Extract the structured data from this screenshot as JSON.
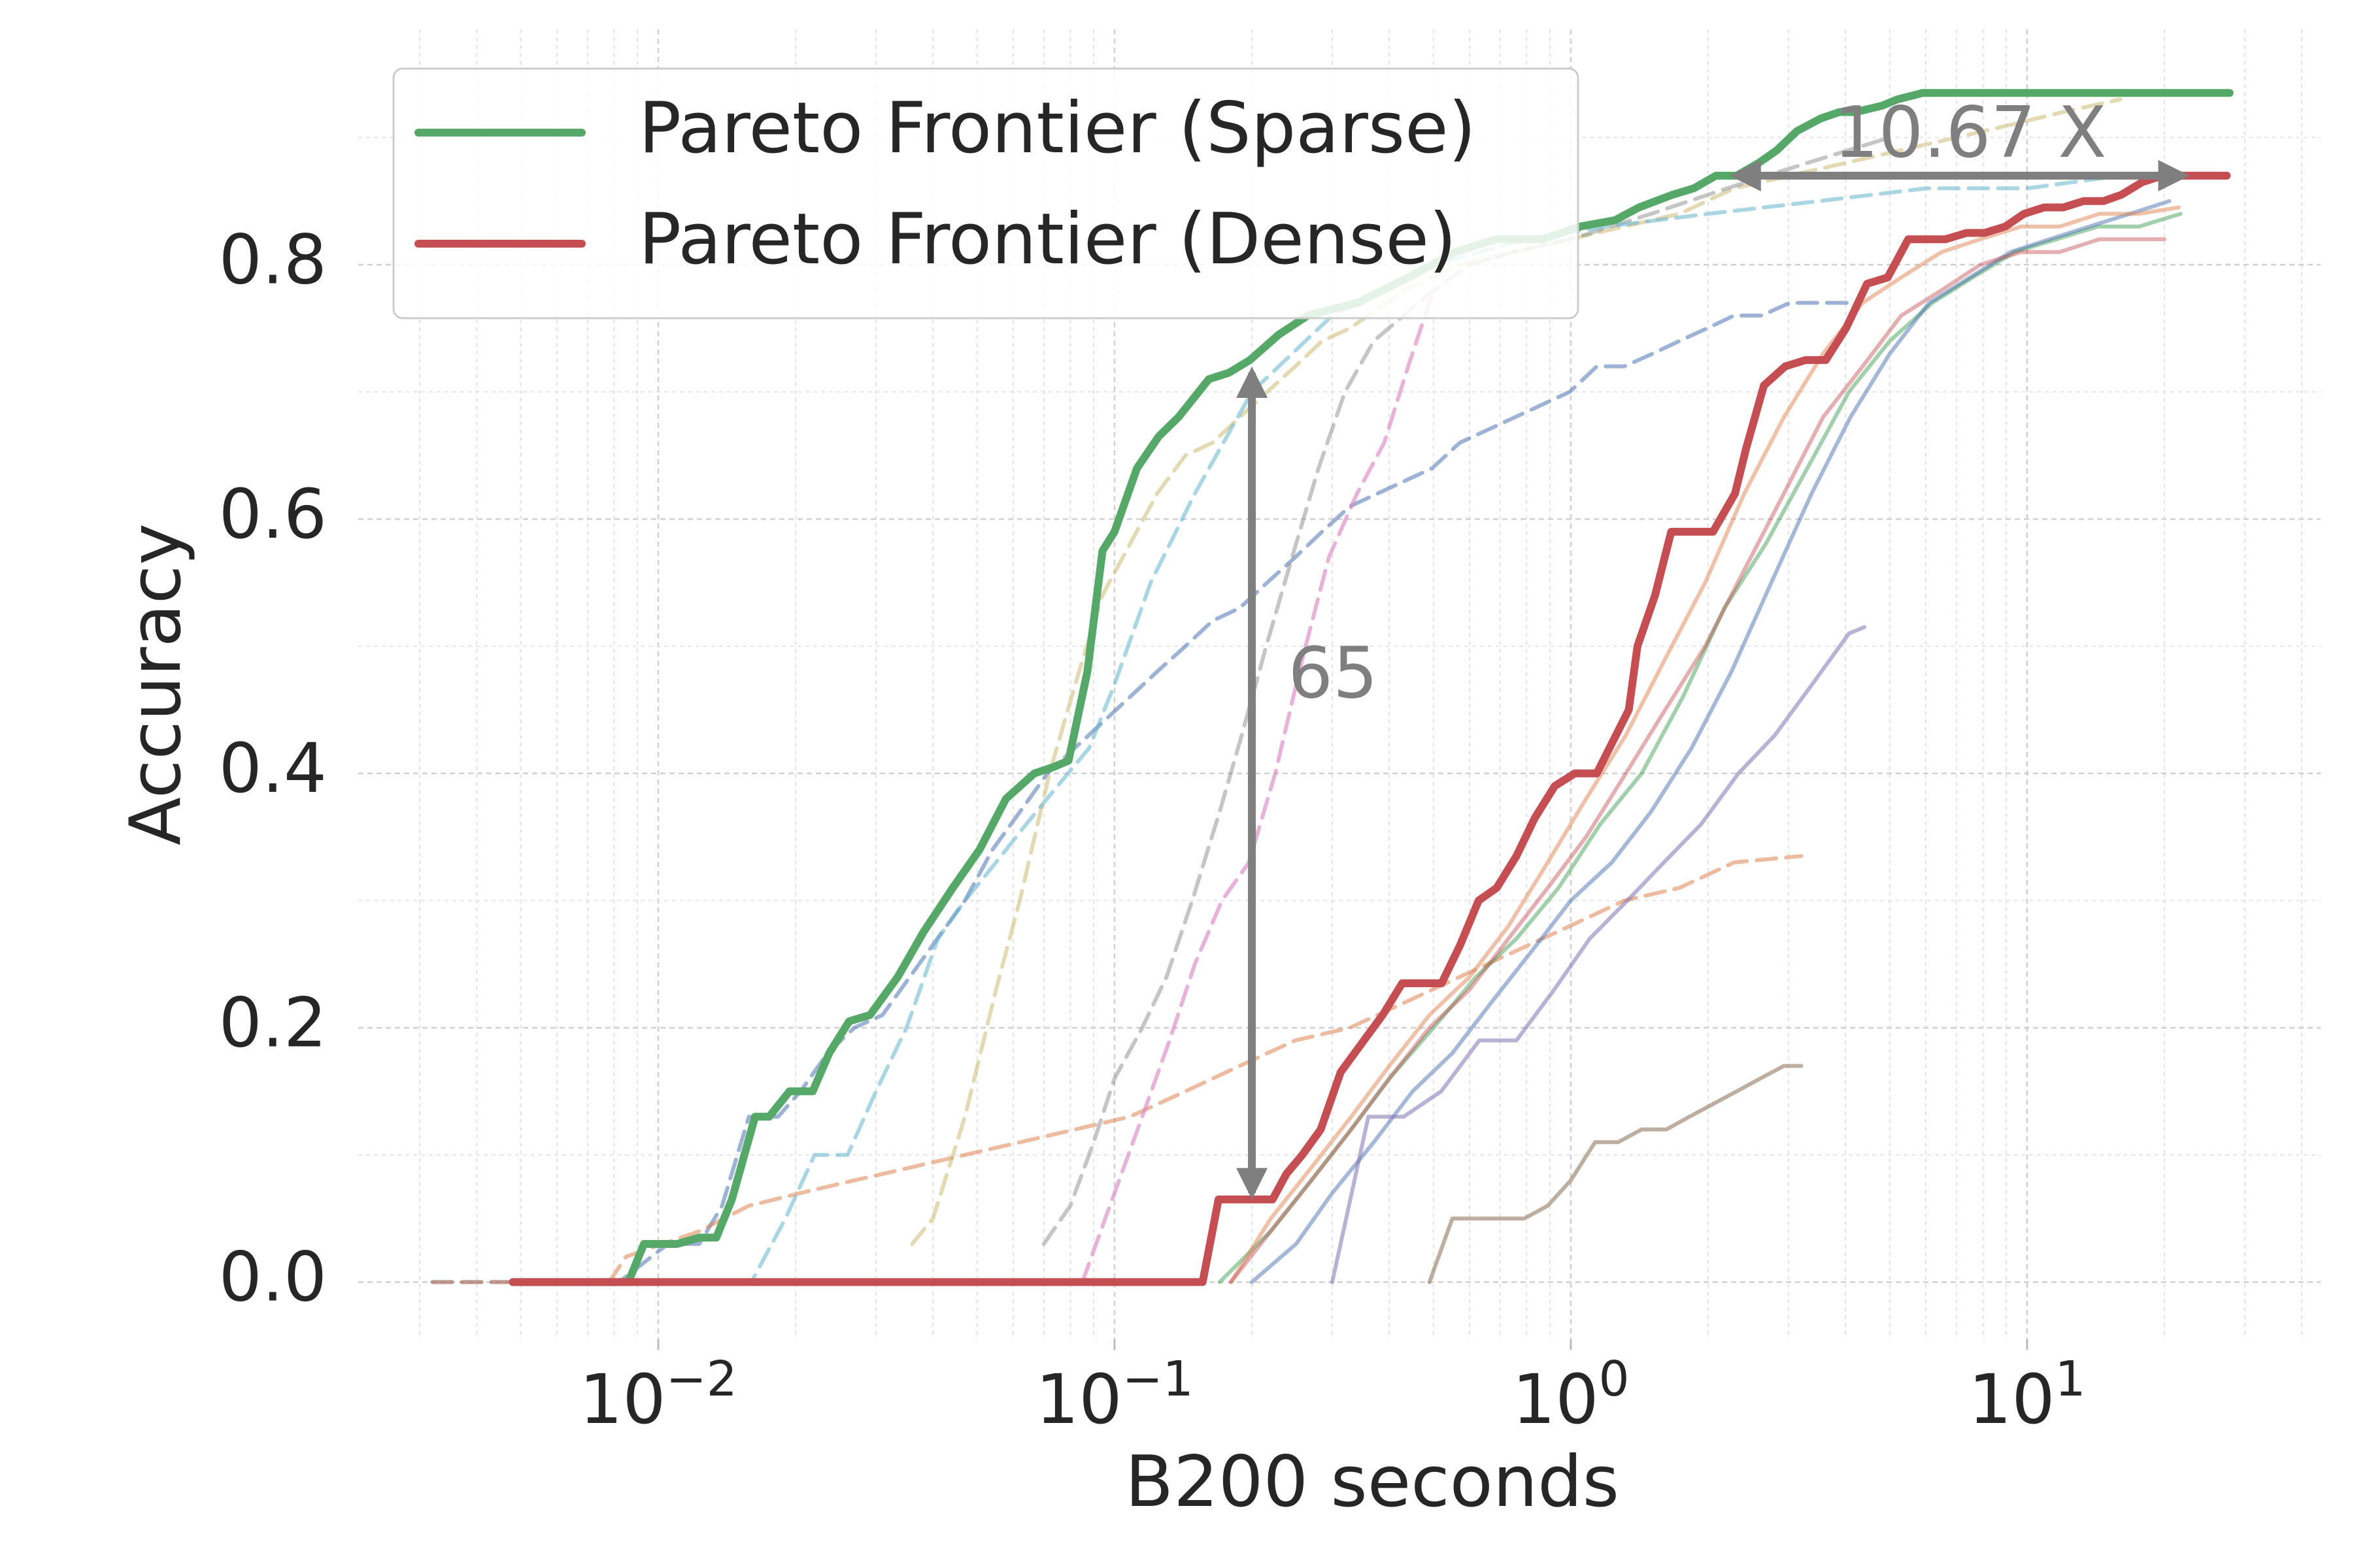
{
  "chart_data": {
    "type": "line",
    "title": "",
    "xlabel": "B200 seconds",
    "ylabel": "Accuracy",
    "xscale": "log",
    "xlim": [
      0.0022,
      44
    ],
    "ylim": [
      -0.045,
      0.985
    ],
    "grid": true,
    "legend_placement": "top-left",
    "x_tick_labels": [
      {
        "value": 0.01,
        "base": "10",
        "exp": "−2"
      },
      {
        "value": 0.1,
        "base": "10",
        "exp": "−1"
      },
      {
        "value": 1,
        "base": "10",
        "exp": "0"
      },
      {
        "value": 10,
        "base": "10",
        "exp": "1"
      }
    ],
    "y_ticks": [
      0.0,
      0.2,
      0.4,
      0.6,
      0.8
    ],
    "y_tick_labels": [
      "0.0",
      "0.2",
      "0.4",
      "0.6",
      "0.8"
    ],
    "legend": [
      {
        "name": "Pareto Frontier (Sparse)",
        "color": "#55a868"
      },
      {
        "name": "Pareto Frontier (Dense)",
        "color": "#c44e52"
      }
    ],
    "annotations": [
      {
        "text": "65",
        "x": 0.24,
        "y": 0.475
      },
      {
        "text": "10.67 X",
        "x": 7.5,
        "y": 0.9
      }
    ],
    "arrows": [
      {
        "from": [
          0.2,
          0.07
        ],
        "to": [
          0.2,
          0.715
        ]
      },
      {
        "from": [
          2.3,
          0.87
        ],
        "to": [
          22,
          0.87
        ]
      }
    ],
    "series": [
      {
        "name": "Pareto Frontier (Sparse)",
        "color": "#55a868",
        "width": 12,
        "opacity": 1,
        "dash": "",
        "x": [
          0.0048,
          0.0086,
          0.0093,
          0.011,
          0.0123,
          0.0134,
          0.0145,
          0.0163,
          0.0175,
          0.0194,
          0.0218,
          0.0237,
          0.0262,
          0.0291,
          0.0335,
          0.0381,
          0.0442,
          0.0506,
          0.0578,
          0.0667,
          0.0735,
          0.0793,
          0.0872,
          0.0941,
          0.1,
          0.112,
          0.125,
          0.138,
          0.161,
          0.178,
          0.198,
          0.229,
          0.265,
          0.341,
          0.441,
          0.558,
          0.687,
          0.866,
          1.05,
          1.25,
          1.41,
          1.67,
          1.86,
          2.08,
          2.31,
          2.58,
          2.83,
          3.13,
          3.53,
          3.88,
          4.21,
          4.81,
          5.2,
          5.9,
          6.3,
          27.8
        ],
        "y": [
          0.0,
          0.0,
          0.03,
          0.03,
          0.035,
          0.035,
          0.065,
          0.13,
          0.13,
          0.15,
          0.15,
          0.18,
          0.205,
          0.21,
          0.24,
          0.275,
          0.31,
          0.34,
          0.38,
          0.4,
          0.405,
          0.41,
          0.48,
          0.575,
          0.59,
          0.64,
          0.665,
          0.68,
          0.71,
          0.715,
          0.725,
          0.745,
          0.76,
          0.77,
          0.79,
          0.81,
          0.82,
          0.82,
          0.83,
          0.835,
          0.845,
          0.855,
          0.86,
          0.87,
          0.87,
          0.88,
          0.89,
          0.905,
          0.915,
          0.92,
          0.92,
          0.925,
          0.93,
          0.935,
          0.935,
          0.935
        ]
      },
      {
        "name": "Pareto Frontier (Dense)",
        "color": "#c44e52",
        "width": 12,
        "opacity": 1,
        "dash": "",
        "x": [
          0.0048,
          0.156,
          0.169,
          0.192,
          0.222,
          0.238,
          0.258,
          0.283,
          0.313,
          0.352,
          0.387,
          0.427,
          0.474,
          0.521,
          0.572,
          0.628,
          0.688,
          0.76,
          0.834,
          0.922,
          1.02,
          1.14,
          1.34,
          1.4,
          1.53,
          1.66,
          1.78,
          2.05,
          2.29,
          2.42,
          2.65,
          2.95,
          3.27,
          3.62,
          4.01,
          4.46,
          4.95,
          5.49,
          6.04,
          6.62,
          7.37,
          8.07,
          8.96,
          9.84,
          10.9,
          12.0,
          13.3,
          14.7,
          16.1,
          17.9,
          19.8,
          21.9,
          24.2,
          27.4
        ],
        "y": [
          0.0,
          0.0,
          0.065,
          0.065,
          0.065,
          0.085,
          0.1,
          0.12,
          0.165,
          0.19,
          0.21,
          0.235,
          0.235,
          0.235,
          0.265,
          0.3,
          0.31,
          0.335,
          0.365,
          0.39,
          0.4,
          0.4,
          0.45,
          0.5,
          0.54,
          0.59,
          0.59,
          0.59,
          0.62,
          0.655,
          0.705,
          0.72,
          0.725,
          0.725,
          0.75,
          0.785,
          0.79,
          0.82,
          0.82,
          0.82,
          0.825,
          0.825,
          0.83,
          0.84,
          0.845,
          0.845,
          0.85,
          0.85,
          0.855,
          0.865,
          0.87,
          0.87,
          0.87,
          0.87
        ]
      },
      {
        "color": "#4c72b0",
        "width": 6,
        "opacity": 0.55,
        "dash": "30,15",
        "x": [
          0.0032,
          0.0082,
          0.0105,
          0.0123,
          0.0138,
          0.0158,
          0.0183,
          0.0205,
          0.0235,
          0.0269,
          0.031,
          0.0356,
          0.0409,
          0.047,
          0.054,
          0.0621,
          0.0713,
          0.0819,
          0.0941,
          0.108,
          0.124,
          0.143,
          0.164,
          0.188,
          0.216,
          0.249,
          0.285,
          0.328,
          0.377,
          0.433,
          0.497,
          0.571,
          0.656,
          0.754,
          0.866,
          0.995,
          1.14,
          1.31,
          1.51,
          1.73,
          1.99,
          2.28,
          2.62,
          3.02,
          3.46,
          3.98,
          4.3
        ],
        "y": [
          0.0,
          0.0,
          0.03,
          0.03,
          0.06,
          0.13,
          0.13,
          0.15,
          0.18,
          0.2,
          0.21,
          0.24,
          0.27,
          0.3,
          0.34,
          0.37,
          0.4,
          0.42,
          0.44,
          0.46,
          0.48,
          0.5,
          0.52,
          0.53,
          0.55,
          0.57,
          0.59,
          0.61,
          0.62,
          0.63,
          0.64,
          0.66,
          0.67,
          0.68,
          0.69,
          0.7,
          0.72,
          0.72,
          0.73,
          0.74,
          0.75,
          0.76,
          0.76,
          0.77,
          0.77,
          0.77,
          0.77
        ]
      },
      {
        "color": "#dd8452",
        "width": 6,
        "opacity": 0.55,
        "dash": "30,15",
        "x": [
          0.0032,
          0.0078,
          0.0085,
          0.0123,
          0.0158,
          0.0205,
          0.0269,
          0.0356,
          0.047,
          0.0621,
          0.0819,
          0.108,
          0.143,
          0.188,
          0.249,
          0.328,
          0.433,
          0.571,
          0.754,
          0.995,
          1.31,
          1.73,
          2.28,
          3.2
        ],
        "y": [
          0.0,
          0.0,
          0.02,
          0.04,
          0.06,
          0.07,
          0.08,
          0.09,
          0.1,
          0.11,
          0.12,
          0.13,
          0.15,
          0.17,
          0.19,
          0.2,
          0.22,
          0.24,
          0.26,
          0.28,
          0.3,
          0.31,
          0.33,
          0.335
        ]
      },
      {
        "color": "#ccb974",
        "width": 6,
        "opacity": 0.55,
        "dash": "30,15",
        "x": [
          0.036,
          0.04,
          0.047,
          0.055,
          0.062,
          0.072,
          0.082,
          0.094,
          0.108,
          0.124,
          0.143,
          0.164,
          0.188,
          0.216,
          0.249,
          0.285,
          0.328,
          0.433,
          0.571,
          0.754,
          0.995,
          1.31,
          1.73,
          2.28,
          3.02,
          4.0,
          5.3,
          7.0,
          9.2,
          12.0,
          16.0
        ],
        "y": [
          0.03,
          0.05,
          0.13,
          0.23,
          0.3,
          0.4,
          0.47,
          0.54,
          0.58,
          0.62,
          0.65,
          0.66,
          0.68,
          0.7,
          0.72,
          0.74,
          0.75,
          0.78,
          0.8,
          0.81,
          0.82,
          0.83,
          0.84,
          0.86,
          0.87,
          0.88,
          0.89,
          0.9,
          0.91,
          0.92,
          0.93
        ]
      },
      {
        "color": "#8c8c8c",
        "width": 6,
        "opacity": 0.5,
        "dash": "30,15",
        "x": [
          0.07,
          0.08,
          0.09,
          0.1,
          0.115,
          0.13,
          0.148,
          0.17,
          0.19,
          0.215,
          0.245,
          0.28,
          0.32,
          0.37,
          0.43,
          0.5,
          0.6,
          0.75,
          1.0,
          1.5,
          2.2,
          3.3,
          5.0
        ],
        "y": [
          0.03,
          0.06,
          0.11,
          0.16,
          0.2,
          0.24,
          0.3,
          0.37,
          0.43,
          0.5,
          0.57,
          0.64,
          0.7,
          0.74,
          0.76,
          0.78,
          0.8,
          0.81,
          0.82,
          0.84,
          0.86,
          0.88,
          0.9
        ]
      },
      {
        "color": "#da8bc3",
        "width": 6,
        "opacity": 0.65,
        "dash": "30,15",
        "x": [
          0.085,
          0.1,
          0.115,
          0.132,
          0.15,
          0.172,
          0.197,
          0.225,
          0.258,
          0.295,
          0.34,
          0.39,
          0.44,
          0.5
        ],
        "y": [
          0.0,
          0.07,
          0.13,
          0.19,
          0.25,
          0.3,
          0.33,
          0.4,
          0.49,
          0.57,
          0.62,
          0.66,
          0.72,
          0.78
        ]
      },
      {
        "color": "#64b5cd",
        "width": 6,
        "opacity": 0.55,
        "dash": "30,15",
        "x": [
          0.013,
          0.016,
          0.019,
          0.022,
          0.026,
          0.03,
          0.035,
          0.041,
          0.047,
          0.055,
          0.064,
          0.075,
          0.088,
          0.1,
          0.12,
          0.15,
          0.2,
          0.3,
          0.5,
          0.8,
          1.2,
          2.0,
          3.5,
          6.0,
          10.0,
          16.0,
          22.0
        ],
        "y": [
          0.0,
          0.0,
          0.05,
          0.1,
          0.1,
          0.15,
          0.2,
          0.27,
          0.3,
          0.33,
          0.36,
          0.39,
          0.42,
          0.47,
          0.55,
          0.62,
          0.7,
          0.76,
          0.8,
          0.82,
          0.83,
          0.84,
          0.85,
          0.86,
          0.86,
          0.87,
          0.87
        ]
      },
      {
        "color": "#55a868",
        "width": 6,
        "opacity": 0.55,
        "dash": "",
        "x": [
          0.17,
          0.22,
          0.27,
          0.33,
          0.4,
          0.5,
          0.62,
          0.76,
          0.94,
          1.16,
          1.43,
          1.76,
          2.17,
          2.67,
          3.3,
          4.07,
          5.0,
          6.2,
          7.6,
          9.4,
          11.6,
          14.3,
          17.6,
          21.7
        ],
        "y": [
          0.0,
          0.04,
          0.08,
          0.12,
          0.16,
          0.2,
          0.24,
          0.27,
          0.31,
          0.36,
          0.4,
          0.46,
          0.53,
          0.58,
          0.64,
          0.7,
          0.74,
          0.77,
          0.79,
          0.81,
          0.82,
          0.83,
          0.83,
          0.84
        ]
      },
      {
        "color": "#4c72b0",
        "width": 6,
        "opacity": 0.5,
        "dash": "",
        "x": [
          0.2,
          0.25,
          0.3,
          0.37,
          0.45,
          0.55,
          0.67,
          0.82,
          1.0,
          1.23,
          1.5,
          1.84,
          2.25,
          2.75,
          3.37,
          4.1,
          5.0,
          6.1,
          7.5,
          9.2,
          11.2,
          13.7,
          16.8,
          20.5
        ],
        "y": [
          0.0,
          0.03,
          0.07,
          0.11,
          0.15,
          0.18,
          0.22,
          0.26,
          0.3,
          0.33,
          0.37,
          0.42,
          0.48,
          0.55,
          0.62,
          0.68,
          0.73,
          0.77,
          0.79,
          0.81,
          0.82,
          0.83,
          0.84,
          0.85
        ]
      },
      {
        "color": "#dd8452",
        "width": 6,
        "opacity": 0.5,
        "dash": "",
        "x": [
          0.18,
          0.22,
          0.27,
          0.33,
          0.4,
          0.49,
          0.6,
          0.73,
          0.89,
          1.08,
          1.32,
          1.61,
          1.97,
          2.4,
          2.93,
          3.57,
          4.36,
          5.3,
          6.5,
          7.9,
          9.7,
          11.8,
          14.4,
          17.6,
          21.5
        ],
        "y": [
          0.0,
          0.05,
          0.09,
          0.13,
          0.17,
          0.21,
          0.24,
          0.28,
          0.33,
          0.38,
          0.43,
          0.49,
          0.55,
          0.62,
          0.68,
          0.73,
          0.77,
          0.79,
          0.81,
          0.82,
          0.83,
          0.83,
          0.84,
          0.84,
          0.845
        ]
      },
      {
        "color": "#c44e52",
        "width": 6,
        "opacity": 0.45,
        "dash": "",
        "x": [
          0.18,
          0.22,
          0.27,
          0.33,
          0.4,
          0.49,
          0.6,
          0.73,
          0.89,
          1.08,
          1.32,
          1.61,
          1.97,
          2.4,
          2.93,
          3.57,
          4.36,
          5.3,
          6.5,
          7.9,
          9.7,
          11.8,
          14.4,
          17.6,
          20.0
        ],
        "y": [
          0.0,
          0.04,
          0.08,
          0.12,
          0.16,
          0.2,
          0.23,
          0.27,
          0.31,
          0.35,
          0.4,
          0.45,
          0.5,
          0.56,
          0.62,
          0.68,
          0.72,
          0.76,
          0.78,
          0.8,
          0.81,
          0.81,
          0.82,
          0.82,
          0.82
        ]
      },
      {
        "color": "#8172b3",
        "width": 6,
        "opacity": 0.55,
        "dash": "",
        "x": [
          0.3,
          0.36,
          0.43,
          0.52,
          0.63,
          0.76,
          0.92,
          1.1,
          1.33,
          1.6,
          1.93,
          2.33,
          2.8,
          3.38,
          4.07,
          4.4
        ],
        "y": [
          0.0,
          0.13,
          0.13,
          0.15,
          0.19,
          0.19,
          0.23,
          0.27,
          0.3,
          0.33,
          0.36,
          0.4,
          0.43,
          0.47,
          0.51,
          0.515
        ]
      },
      {
        "color": "#937860",
        "width": 6,
        "opacity": 0.6,
        "dash": "",
        "x": [
          0.49,
          0.55,
          0.62,
          0.7,
          0.79,
          0.89,
          1.0,
          1.13,
          1.27,
          1.43,
          1.62,
          1.82,
          2.05,
          2.31,
          2.6,
          2.93,
          3.2
        ],
        "y": [
          0.0,
          0.05,
          0.05,
          0.05,
          0.05,
          0.06,
          0.08,
          0.11,
          0.11,
          0.12,
          0.12,
          0.13,
          0.14,
          0.15,
          0.16,
          0.17,
          0.17
        ]
      }
    ]
  }
}
